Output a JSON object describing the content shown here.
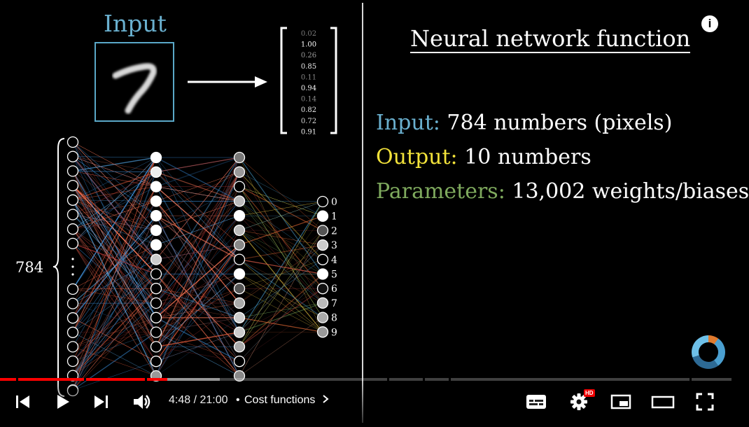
{
  "scene": {
    "input_title": "Input",
    "output_vector": [
      "0.02",
      "1.00",
      "0.26",
      "0.85",
      "0.11",
      "0.94",
      "0.14",
      "0.82",
      "0.72",
      "0.91"
    ],
    "layer_label": "784",
    "output_labels": [
      "0",
      "1",
      "2",
      "3",
      "4",
      "5",
      "6",
      "7",
      "8",
      "9"
    ],
    "title": "Neural network function",
    "specs": [
      {
        "key": "Input:",
        "value": "784 numbers (pixels)",
        "color": "#6ab0cf"
      },
      {
        "key": "Output:",
        "value": "10 numbers",
        "color": "#f2e23a"
      },
      {
        "key": "Parameters:",
        "value": "13,002 weights/biases",
        "color": "#7faa5e"
      }
    ]
  },
  "player": {
    "current_time": "4:48",
    "duration": "21:00",
    "time_separator": " / ",
    "chapter_separator": "•",
    "chapter": "Cost functions",
    "progress_fraction": 0.229,
    "buffered_fraction": 0.3,
    "hd_badge": "HD",
    "icons": [
      "previous-icon",
      "play-icon",
      "next-icon",
      "volume-icon",
      "chevron-right-icon",
      "subtitles-icon",
      "settings-icon",
      "miniplayer-icon",
      "theater-icon",
      "fullscreen-icon",
      "info-icon"
    ]
  }
}
